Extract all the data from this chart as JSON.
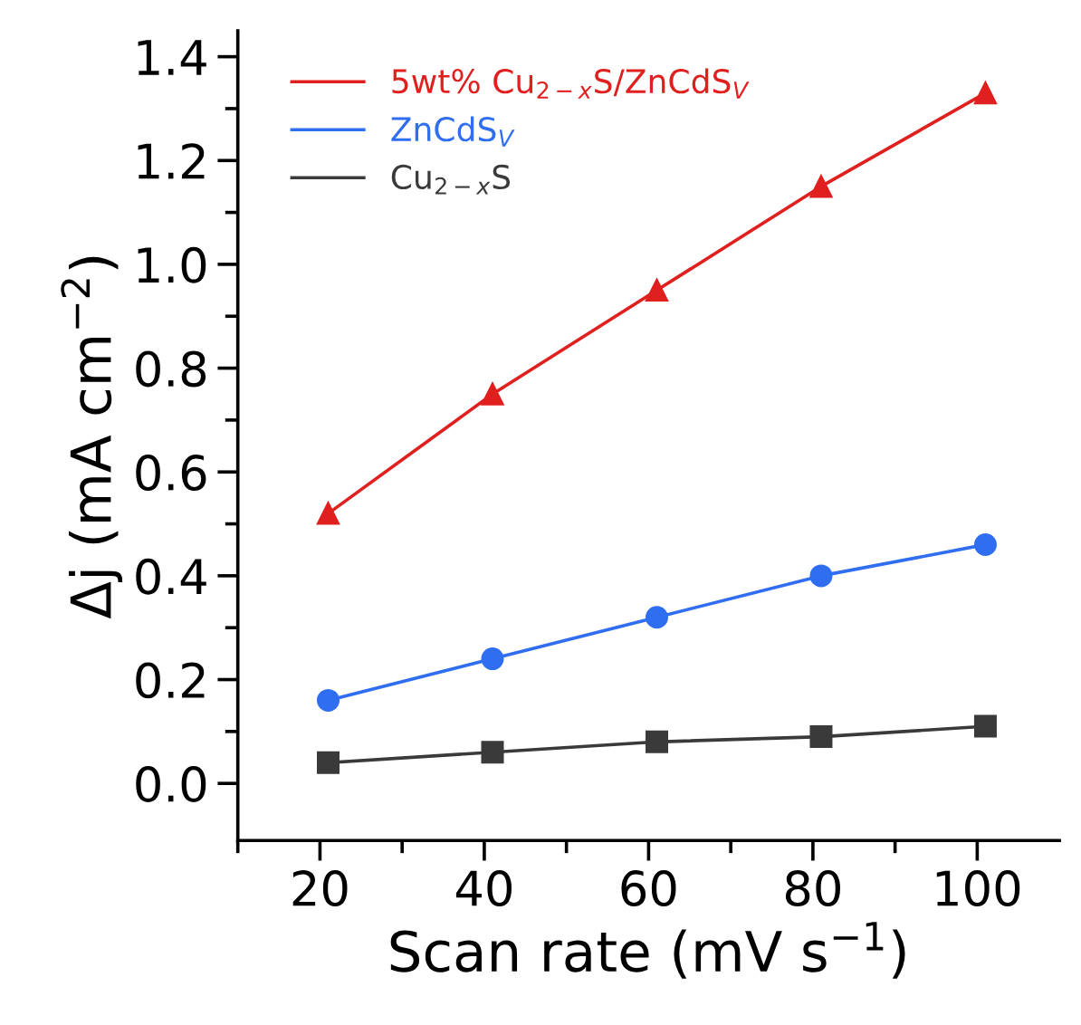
{
  "chart_data": {
    "type": "line",
    "xlabel": "Scan rate (mV s$^{−1}$)",
    "ylabel": "Δj (mA cm$^{−2}$)",
    "x": [
      21,
      41,
      61,
      81,
      101
    ],
    "series": [
      {
        "name": "5wt% Cu$_{2−x}$S/ZnCdS$_{V}$",
        "color": "#e0201e",
        "marker": "triangle",
        "values": [
          0.52,
          0.75,
          0.95,
          1.15,
          1.33
        ]
      },
      {
        "name": "ZnCdS$_{V}$",
        "color": "#2f6ef0",
        "marker": "circle",
        "values": [
          0.16,
          0.24,
          0.32,
          0.4,
          0.46
        ]
      },
      {
        "name": "Cu$_{2−x}$S",
        "color": "#3a3a3a",
        "marker": "square",
        "values": [
          0.04,
          0.06,
          0.08,
          0.09,
          0.11
        ]
      }
    ],
    "xlim": [
      10,
      110
    ],
    "xticks": [
      20,
      40,
      60,
      80,
      100,
      {
        "value": 10,
        "label": null
      },
      {
        "value": 30,
        "label": null
      },
      {
        "value": 50,
        "label": null
      },
      {
        "value": 70,
        "label": null
      },
      {
        "value": 90,
        "label": null
      }
    ],
    "ylim": [
      -0.11,
      1.45
    ],
    "yticks": [
      {
        "value": 0,
        "label": "0.0"
      },
      0.2,
      0.4,
      0.6,
      0.8,
      {
        "value": 1,
        "label": "1.0"
      },
      1.2,
      1.4,
      {
        "value": 0.1,
        "label": null
      },
      {
        "value": 0.3,
        "label": null
      },
      {
        "value": 0.5,
        "label": null
      },
      {
        "value": 0.7,
        "label": null
      },
      {
        "value": 0.9,
        "label": null
      },
      {
        "value": 1.1,
        "label": null
      },
      {
        "value": 1.3,
        "label": null
      }
    ],
    "grid": false,
    "legend": "top left",
    "line_style": "solid"
  }
}
